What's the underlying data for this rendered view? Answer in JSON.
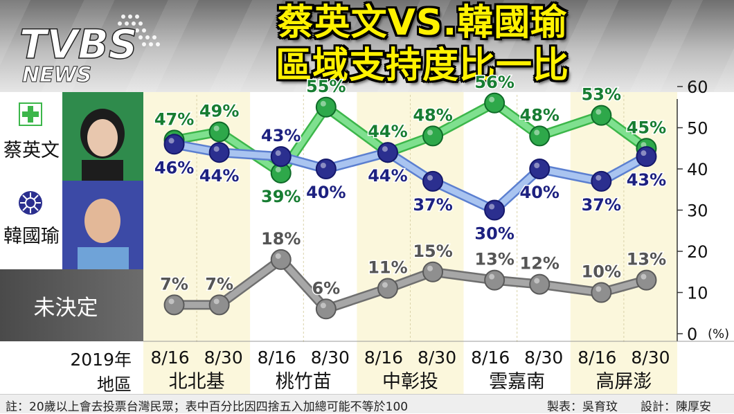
{
  "brand": {
    "logo_top": "TVBS",
    "logo_bottom": "NEWS"
  },
  "title": {
    "line1": "蔡英文VS.韓國瑜",
    "line2": "區域支持度比一比"
  },
  "legend": {
    "tsai": {
      "name": "蔡英文",
      "color": "#3cb64a"
    },
    "han": {
      "name": "韓國瑜",
      "color": "#2b2f8f"
    },
    "undecided": {
      "name": "未決定",
      "color": "#8a8a8a"
    }
  },
  "row_labels": {
    "year": "2019年",
    "area": "地區"
  },
  "chart_data": {
    "type": "line",
    "x": [
      "8/16",
      "8/30",
      "8/16",
      "8/30",
      "8/16",
      "8/30",
      "8/16",
      "8/30",
      "8/16",
      "8/30"
    ],
    "regions": [
      "北北基",
      "桃竹苗",
      "中彰投",
      "雲嘉南",
      "高屏澎"
    ],
    "ylim": [
      0,
      60
    ],
    "yticks": [
      0,
      10,
      20,
      30,
      40,
      50,
      60
    ],
    "yunit": "(%)",
    "series": [
      {
        "name": "蔡英文",
        "color": "#3cb64a",
        "values": [
          47,
          49,
          39,
          55,
          44,
          48,
          56,
          48,
          53,
          45
        ]
      },
      {
        "name": "韓國瑜",
        "color": "#2b2f8f",
        "values": [
          46,
          44,
          43,
          40,
          44,
          37,
          30,
          40,
          37,
          43
        ]
      },
      {
        "name": "未決定",
        "color": "#8a8a8a",
        "values": [
          7,
          7,
          18,
          6,
          11,
          15,
          13,
          12,
          10,
          13
        ]
      }
    ]
  },
  "footer": {
    "note": "註：20歲以上會去投票台灣民眾；表中百分比因四捨五入加總可能不等於100",
    "credit1": "製表：吳育玟",
    "credit2": "設計：陳厚安"
  }
}
